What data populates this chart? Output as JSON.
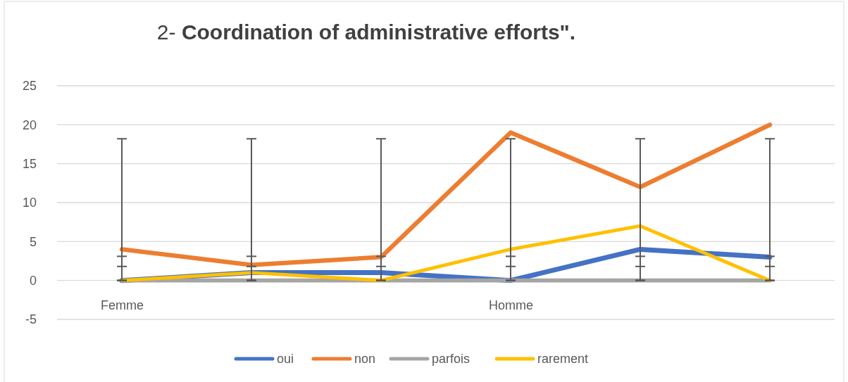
{
  "chart_data": {
    "type": "line",
    "title": "2- Coordination of administrative efforts\".",
    "categories": [
      "Femme",
      null,
      null,
      "Homme",
      null,
      null
    ],
    "series": [
      {
        "name": "oui",
        "color": "#4472c4",
        "values": [
          0,
          1,
          1,
          0,
          4,
          3
        ],
        "errors": [
          [
            0,
            1.8
          ],
          [
            0,
            1.8
          ],
          [
            0,
            1.8
          ],
          [
            0,
            1.8
          ],
          [
            0,
            1.8
          ],
          [
            0,
            1.8
          ]
        ]
      },
      {
        "name": "non",
        "color": "#ed7d31",
        "values": [
          4,
          2,
          3,
          19,
          12,
          20
        ]
      },
      {
        "name": "parfois",
        "color": "#a5a5a5",
        "values": [
          0,
          0,
          0,
          0,
          0,
          0
        ],
        "errors": [
          [
            0,
            18.2
          ],
          [
            0,
            18.2
          ],
          [
            0,
            18.2
          ],
          [
            0,
            18.2
          ],
          [
            0,
            18.2
          ],
          [
            0,
            18.2
          ]
        ]
      },
      {
        "name": "rarement",
        "color": "#ffc000",
        "values": [
          0,
          1,
          0,
          4,
          7,
          0
        ],
        "errors": [
          [
            0,
            3.1
          ],
          [
            0,
            3.1
          ],
          [
            0,
            3.1
          ],
          [
            0,
            3.1
          ],
          [
            0,
            3.1
          ],
          [
            0,
            3.1
          ]
        ]
      }
    ],
    "ylim": [
      -5,
      25
    ],
    "yticks": [
      -5,
      0,
      5,
      10,
      15,
      20,
      25
    ],
    "grid": "y",
    "legend": "bottom",
    "marker": "none",
    "line_style": "solid"
  }
}
